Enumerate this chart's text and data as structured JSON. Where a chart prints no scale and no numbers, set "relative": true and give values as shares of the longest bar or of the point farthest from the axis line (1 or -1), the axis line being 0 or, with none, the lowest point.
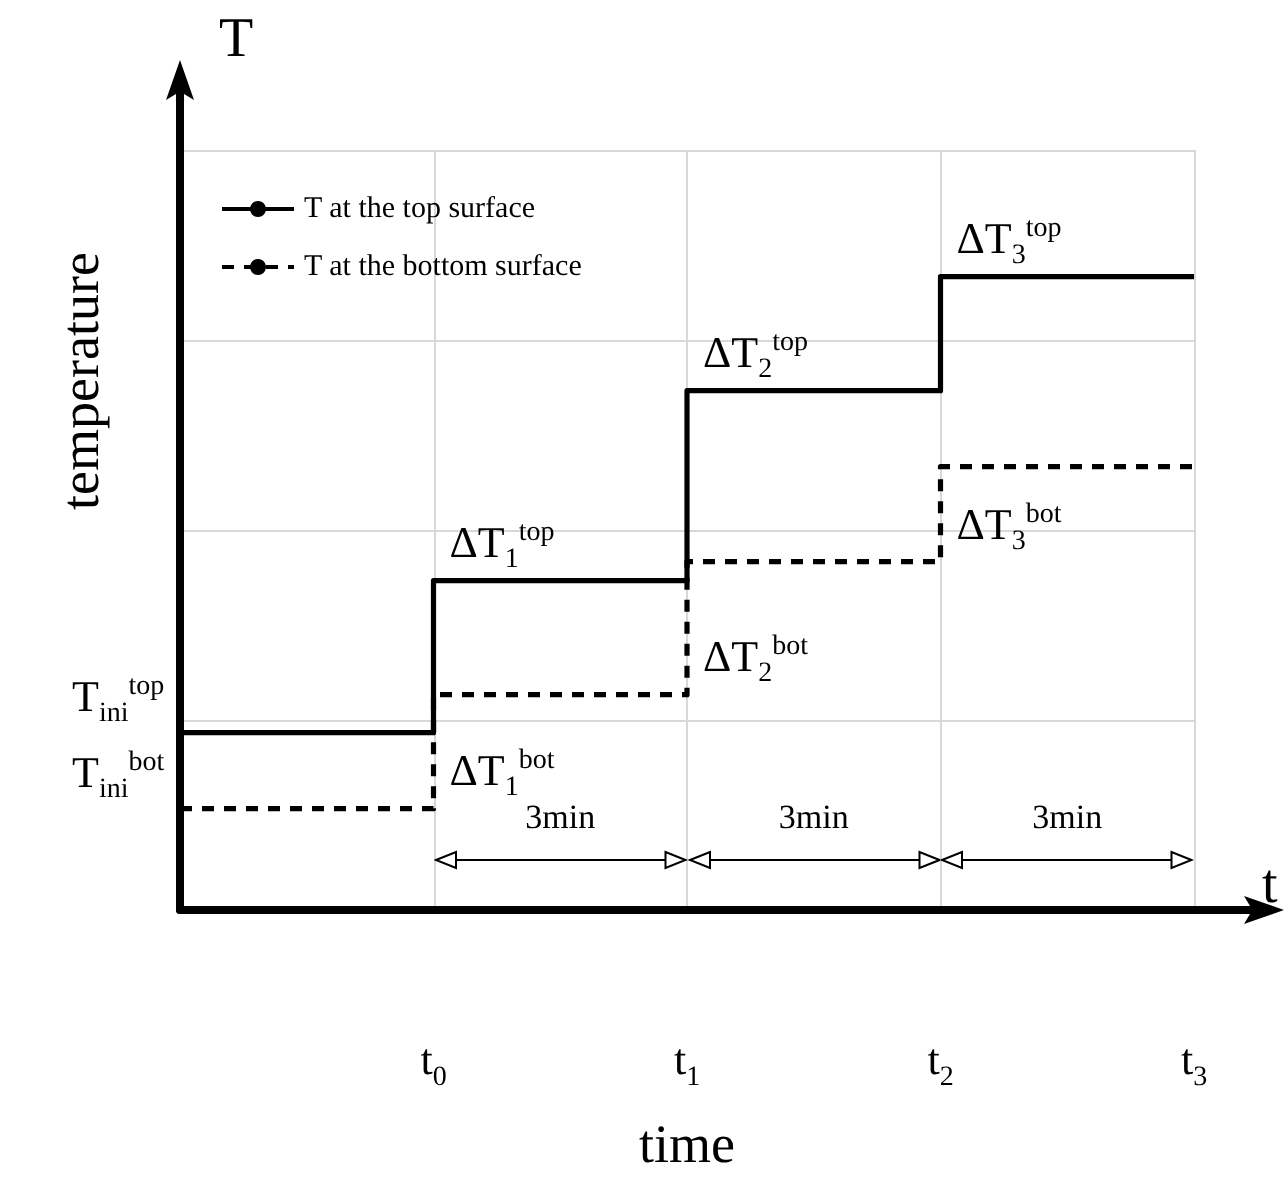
{
  "chart_data": {
    "type": "step",
    "relative": true,
    "xlabel": "time",
    "ylabel": "temperature",
    "categories": [
      null,
      "t$_{0}$",
      "t$_{1}$",
      "t$_{2}$",
      "t$_{3}$"
    ],
    "series": [
      {
        "name": "T at the top surface",
        "color": "#000000",
        "line_style": "solid",
        "values": [
          0.28,
          0.52,
          0.82,
          1,
          1
        ]
      },
      {
        "name": "T at the bottom surface",
        "color": "#000000",
        "line_style": "dashed",
        "values": [
          0.16,
          0.34,
          0.55,
          0.7,
          0.7
        ]
      }
    ],
    "annotations": [
      "T",
      "t",
      "3min",
      "3min",
      "3min",
      {
        "text": "ΔT$_{1}$$^{top}$",
        "x": "t$_{0}$",
        "y": 0.52
      },
      {
        "text": "ΔT$_{1}$$^{bot}$",
        "x": "t$_{0}$",
        "y": 0.16
      },
      {
        "text": "ΔT$_{2}$$^{top}$",
        "x": "t$_{1}$",
        "y": 0.82
      },
      {
        "text": "ΔT$_{2}$$^{bot}$",
        "x": "t$_{1}$",
        "y": 0.34
      },
      {
        "text": "ΔT$_{3}$$^{top}$",
        "x": "t$_{2}$",
        "y": 1
      },
      {
        "text": "ΔT$_{3}$$^{bot}$",
        "x": "t$_{2}$",
        "y": 0.55
      },
      "T$_{ini}$$^{top}$",
      "T$_{ini}$$^{bot}$"
    ],
    "grid": true,
    "legend": "top left",
    "marker": "none"
  }
}
